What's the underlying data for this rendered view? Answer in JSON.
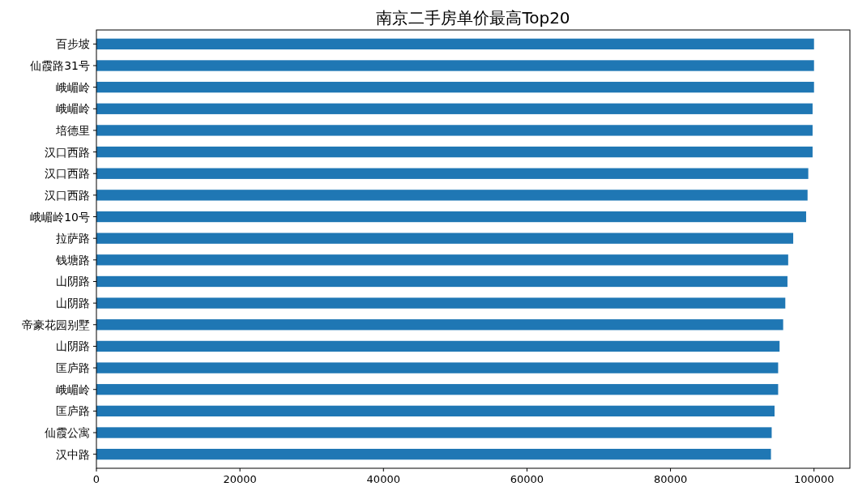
{
  "chart_data": {
    "type": "bar",
    "orientation": "horizontal",
    "title": "南京二手房单价最高Top20",
    "categories": [
      "百步坡",
      "仙霞路31号",
      "峨嵋岭",
      "峨嵋岭",
      "培德里",
      "汉口西路",
      "汉口西路",
      "汉口西路",
      "峨嵋岭10号",
      "拉萨路",
      "钱塘路",
      "山阴路",
      "山阴路",
      "帝豪花园别墅",
      "山阴路",
      "匡庐路",
      "峨嵋岭",
      "匡庐路",
      "仙霞公寓",
      "汉中路"
    ],
    "values": [
      100000,
      100000,
      100000,
      99800,
      99800,
      99800,
      99200,
      99100,
      98900,
      97100,
      96400,
      96300,
      96000,
      95700,
      95200,
      95000,
      95000,
      94500,
      94100,
      94000
    ],
    "color": "#1f77b4",
    "xlim": [
      0,
      105000
    ],
    "xticks": [
      0,
      20000,
      40000,
      60000,
      80000,
      100000
    ],
    "grid": false
  }
}
